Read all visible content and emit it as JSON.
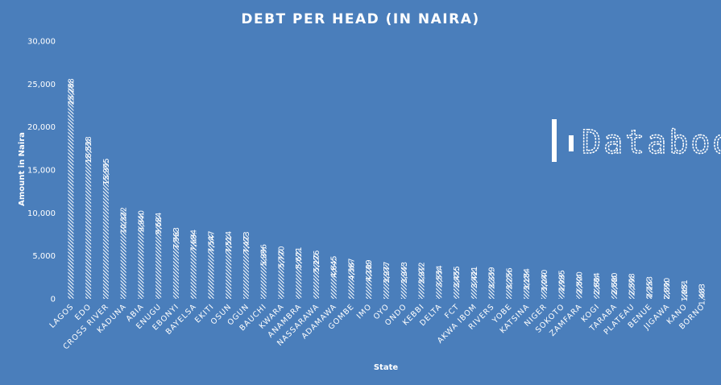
{
  "chart_data": {
    "type": "bar",
    "title": "DEBT PER HEAD (IN NAIRA)",
    "xlabel": "State",
    "ylabel": "Amount in Naira",
    "ylim": [
      0,
      30000
    ],
    "yticks": [
      0,
      5000,
      10000,
      15000,
      20000,
      25000,
      30000
    ],
    "ytick_labels": [
      "0",
      "5,000",
      "10,000",
      "15,000",
      "20,000",
      "25,000",
      "30,000"
    ],
    "grid": false,
    "legend": "none",
    "categories": [
      "LAGOS",
      "EDO",
      "CROSS RIVER",
      "KADUNA",
      "ABIA",
      "ENUGU",
      "EBONYI",
      "BAYELSA",
      "EKITI",
      "OSUN",
      "OGUN",
      "BAUCHI",
      "KWARA",
      "ANAMBRA",
      "NASSARAWA",
      "ADAMAWA",
      "GOMBE",
      "IMO",
      "OYO",
      "ONDO",
      "KEBBI",
      "DELTA",
      "FCT",
      "AKWA IBOM",
      "RIVERS",
      "YOBE",
      "KATSINA",
      "NIGER",
      "SOKOTO",
      "ZAMFARA",
      "KOGI",
      "TARABA",
      "PLATEAU",
      "BENUE",
      "JIGAWA",
      "KANO",
      "BORNO"
    ],
    "values": [
      25288,
      18538,
      15995,
      10322,
      9940,
      9684,
      7963,
      7694,
      7547,
      7514,
      7473,
      5996,
      5770,
      5671,
      5276,
      4645,
      4367,
      4189,
      3977,
      3943,
      3912,
      3534,
      3455,
      3421,
      3339,
      3256,
      3184,
      3040,
      2995,
      2800,
      2684,
      2680,
      2598,
      2253,
      2090,
      1851,
      1403
    ],
    "value_labels": [
      "25,288",
      "18,538",
      "15,995",
      "10,322",
      "9,940",
      "9,684",
      "7,963",
      "7,694",
      "7,547",
      "7,514",
      "7,473",
      "5,996",
      "5,770",
      "5,671",
      "5,276",
      "4,645",
      "4,367",
      "4,189",
      "3,977",
      "3,943",
      "3,912",
      "3,534",
      "3,455",
      "3,421",
      "3,339",
      "3,256",
      "3,184",
      "3,040",
      "2,995",
      "2,800",
      "2,684",
      "2,680",
      "2,598",
      "2,253",
      "2,090",
      "1,851",
      "1,403"
    ]
  },
  "watermark": {
    "text": "Databod",
    "icon": "databod-logo-icon"
  },
  "colors": {
    "background": "#4a7ebb",
    "text": "#ffffff",
    "bar_fill": "hatched-white"
  }
}
